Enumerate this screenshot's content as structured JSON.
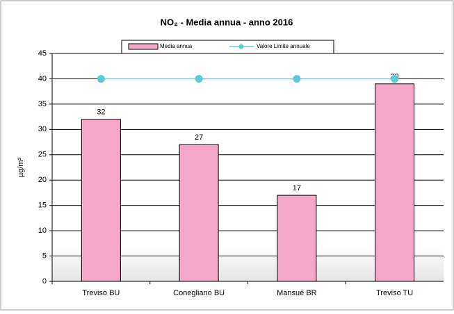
{
  "chart_data": {
    "type": "bar",
    "title": "NO₂ - Media annua - anno 2016",
    "y_label": "µg/m³",
    "categories": [
      "Treviso BU",
      "Conegliano BU",
      "Mansuè BR",
      "Treviso TU"
    ],
    "series": [
      {
        "name": "Media annua",
        "type": "bar",
        "color": "#f4a7c9",
        "values": [
          32,
          27,
          17,
          39
        ]
      },
      {
        "name": "Valore Limite annuale",
        "type": "line",
        "color": "#5fc9dc",
        "values": [
          40,
          40,
          40,
          40
        ]
      }
    ],
    "ylim": [
      0,
      45
    ],
    "yticks": [
      0,
      5,
      10,
      15,
      20,
      25,
      30,
      35,
      40,
      45
    ],
    "grid": true,
    "legend": "top"
  }
}
